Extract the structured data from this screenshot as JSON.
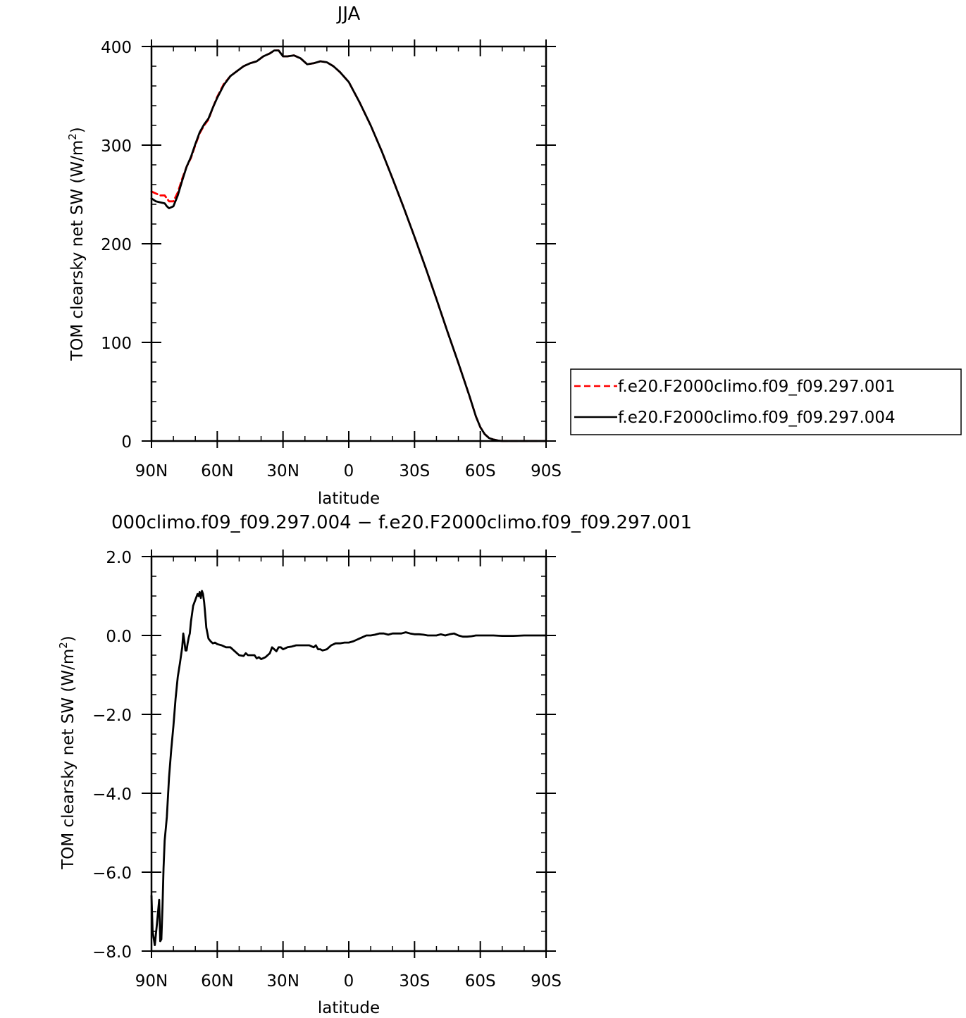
{
  "chart_data": [
    {
      "type": "line",
      "title": "JJA",
      "xlabel": "latitude",
      "ylabel": "TOM clearsky net SW (W/m²)",
      "ylabel_main": "TOM clearsky net SW (W/m",
      "ylabel_sup": "2",
      "ylabel_close": ")",
      "xlim": [
        90,
        -90
      ],
      "ylim": [
        0,
        400
      ],
      "x_ticks": [
        {
          "v": 90,
          "label": "90N"
        },
        {
          "v": 60,
          "label": "60N"
        },
        {
          "v": 30,
          "label": "30N"
        },
        {
          "v": 0,
          "label": "0"
        },
        {
          "v": -30,
          "label": "30S"
        },
        {
          "v": -60,
          "label": "60S"
        },
        {
          "v": -90,
          "label": "90S"
        }
      ],
      "y_ticks": [
        {
          "v": 0,
          "label": "0"
        },
        {
          "v": 100,
          "label": "100"
        },
        {
          "v": 200,
          "label": "200"
        },
        {
          "v": 300,
          "label": "300"
        },
        {
          "v": 400,
          "label": "400"
        }
      ],
      "legend_position": "right",
      "series": [
        {
          "name": "f.e20.F2000climo.f09_f09.297.001",
          "color": "#ff0000",
          "dash": "dashed",
          "x": [
            90,
            88,
            86,
            84,
            83,
            82,
            80,
            78,
            76,
            74,
            72,
            70,
            68,
            66,
            64,
            62,
            60,
            57,
            54,
            51,
            48,
            45,
            42,
            39,
            36,
            34,
            32,
            30,
            28,
            25,
            22,
            19,
            16,
            13,
            10,
            7,
            4,
            0,
            -5,
            -10,
            -15,
            -20,
            -25,
            -30,
            -35,
            -40,
            -45,
            -50,
            -55,
            -58,
            -60,
            -62,
            -64,
            -66,
            -68,
            -70,
            -72,
            -75,
            -80,
            -85,
            -90
          ],
          "y": [
            253,
            251,
            249,
            249,
            246,
            243,
            243,
            252,
            266,
            278,
            287,
            300,
            312,
            320,
            326,
            338,
            349,
            362,
            370,
            375,
            380,
            383,
            385,
            390,
            393,
            396,
            396,
            390,
            390,
            391,
            388,
            382,
            383,
            385,
            384,
            380,
            374,
            364,
            343,
            320,
            294,
            266,
            237,
            207,
            176,
            144,
            111,
            79,
            46,
            25,
            14,
            7,
            3,
            1.5,
            0.5,
            0,
            0,
            0,
            0,
            0,
            0
          ]
        },
        {
          "name": "f.e20.F2000climo.f09_f09.297.004",
          "color": "#000000",
          "dash": "solid",
          "x": [
            90,
            88,
            86,
            84,
            83,
            82,
            80,
            78,
            76,
            74,
            72,
            70,
            68,
            66,
            64,
            62,
            60,
            57,
            54,
            51,
            48,
            45,
            42,
            39,
            36,
            34,
            32,
            30,
            28,
            25,
            22,
            19,
            16,
            13,
            10,
            7,
            4,
            0,
            -5,
            -10,
            -15,
            -20,
            -25,
            -30,
            -35,
            -40,
            -45,
            -50,
            -55,
            -58,
            -60,
            -62,
            -64,
            -66,
            -68,
            -70,
            -72,
            -75,
            -80,
            -85,
            -90
          ],
          "y": [
            246,
            243,
            242,
            241,
            238,
            236,
            238,
            249,
            264,
            278,
            288,
            301,
            313,
            321,
            327,
            338,
            348,
            361,
            370,
            375,
            380,
            383,
            385,
            390,
            393,
            396,
            396,
            390,
            390,
            391,
            388,
            382,
            383,
            385,
            384,
            380,
            374,
            364,
            343,
            320,
            294,
            266,
            237,
            207,
            176,
            144,
            111,
            79,
            46,
            25,
            14,
            7,
            3,
            1.5,
            0.5,
            0,
            0,
            0,
            0,
            0,
            0
          ]
        }
      ]
    },
    {
      "type": "line",
      "title": "000climo.f09_f09.297.004 − f.e20.F2000climo.f09_f09.297.001",
      "xlabel": "latitude",
      "ylabel": "TOM clearsky net SW (W/m²)",
      "ylabel_main": "TOM clearsky net SW (W/m",
      "ylabel_sup": "2",
      "ylabel_close": ")",
      "xlim": [
        90,
        -90
      ],
      "ylim": [
        -8.0,
        2.0
      ],
      "x_ticks": [
        {
          "v": 90,
          "label": "90N"
        },
        {
          "v": 60,
          "label": "60N"
        },
        {
          "v": 30,
          "label": "30N"
        },
        {
          "v": 0,
          "label": "0"
        },
        {
          "v": -30,
          "label": "30S"
        },
        {
          "v": -60,
          "label": "60S"
        },
        {
          "v": -90,
          "label": "90S"
        }
      ],
      "y_ticks": [
        {
          "v": -8,
          "label": "−8.0"
        },
        {
          "v": -6,
          "label": "−6.0"
        },
        {
          "v": -4,
          "label": "−4.0"
        },
        {
          "v": -2,
          "label": "−2.0"
        },
        {
          "v": 0,
          "label": "0.0"
        },
        {
          "v": 2,
          "label": "2.0"
        }
      ],
      "series": [
        {
          "name": "",
          "color": "#000000",
          "dash": "solid",
          "x": [
            90,
            89.5,
            88.5,
            87.5,
            86.5,
            86,
            85.5,
            85,
            84.5,
            84,
            83,
            82,
            81,
            80,
            79,
            78,
            77,
            76,
            75.5,
            75,
            74.5,
            74,
            73.5,
            73,
            72.5,
            72,
            71.5,
            71,
            70,
            69,
            68.5,
            68,
            67.5,
            67,
            66.5,
            66,
            65.5,
            65,
            64,
            63,
            62,
            61,
            60,
            58,
            56,
            54,
            52,
            50,
            48,
            47,
            46,
            44,
            43,
            42,
            41,
            40,
            38,
            36,
            35,
            34,
            33,
            32,
            31,
            30,
            28,
            26,
            24,
            22,
            20,
            18,
            16,
            15,
            14,
            13,
            12,
            10,
            8,
            6,
            4,
            2,
            0,
            -2,
            -4,
            -6,
            -8,
            -10,
            -12,
            -14,
            -16,
            -18,
            -20,
            -22,
            -24,
            -26,
            -28,
            -30,
            -32,
            -34,
            -36,
            -38,
            -40,
            -42,
            -44,
            -46,
            -48,
            -50,
            -52,
            -54,
            -56,
            -58,
            -60,
            -63,
            -66,
            -70,
            -75,
            -80,
            -85,
            -90
          ],
          "y": [
            -6.6,
            -7.5,
            -7.85,
            -7.3,
            -6.7,
            -7.75,
            -7.7,
            -6.9,
            -5.9,
            -5.2,
            -4.6,
            -3.6,
            -2.9,
            -2.3,
            -1.6,
            -1.05,
            -0.7,
            -0.3,
            0.05,
            -0.15,
            -0.38,
            -0.38,
            -0.2,
            -0.05,
            0.05,
            0.35,
            0.55,
            0.75,
            0.9,
            1.05,
            1.0,
            1.1,
            0.95,
            1.13,
            1.05,
            0.85,
            0.55,
            0.2,
            -0.08,
            -0.15,
            -0.2,
            -0.18,
            -0.22,
            -0.25,
            -0.3,
            -0.3,
            -0.4,
            -0.5,
            -0.52,
            -0.45,
            -0.5,
            -0.5,
            -0.5,
            -0.58,
            -0.55,
            -0.6,
            -0.55,
            -0.45,
            -0.3,
            -0.35,
            -0.4,
            -0.3,
            -0.3,
            -0.35,
            -0.3,
            -0.28,
            -0.25,
            -0.25,
            -0.25,
            -0.25,
            -0.3,
            -0.25,
            -0.35,
            -0.35,
            -0.38,
            -0.35,
            -0.25,
            -0.2,
            -0.2,
            -0.18,
            -0.18,
            -0.15,
            -0.1,
            -0.05,
            0.0,
            0.0,
            0.02,
            0.05,
            0.05,
            0.02,
            0.05,
            0.05,
            0.05,
            0.08,
            0.05,
            0.03,
            0.03,
            0.02,
            0.0,
            0.0,
            0.0,
            0.03,
            0.0,
            0.03,
            0.05,
            0.0,
            -0.03,
            -0.03,
            -0.02,
            0.0,
            0.0,
            0.0,
            0.0,
            -0.01,
            -0.01,
            0.0,
            0.0,
            0.0
          ]
        }
      ]
    }
  ]
}
